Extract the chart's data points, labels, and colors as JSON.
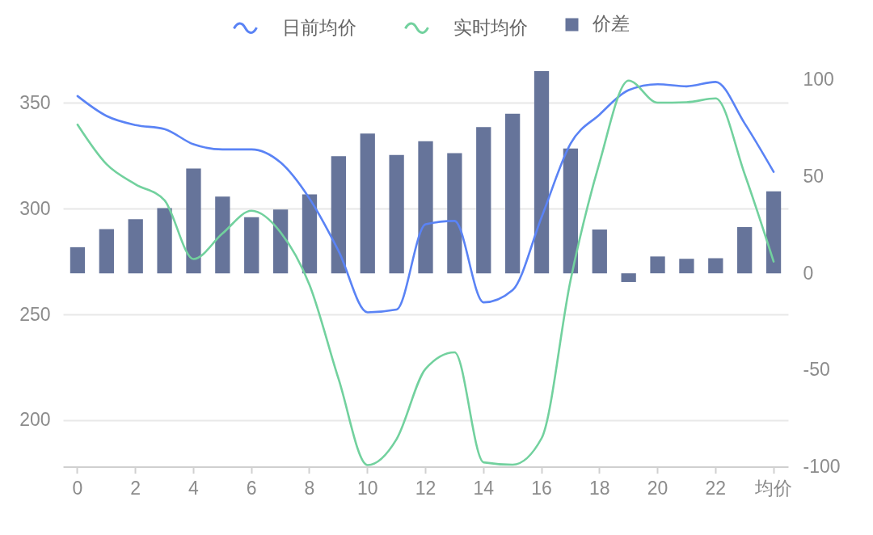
{
  "chart_data": {
    "type": "line",
    "categories": [
      "0",
      null,
      "2",
      null,
      "4",
      null,
      "6",
      null,
      "8",
      null,
      "10",
      null,
      "12",
      null,
      "14",
      null,
      "16",
      null,
      "18",
      null,
      "20",
      null,
      "22",
      null,
      "均价"
    ],
    "series": [
      {
        "name": "日前均价",
        "color": "#5a83f5",
        "values": [
          353.2,
          343.8,
          339.5,
          337.6,
          330.4,
          328.0,
          328.0,
          321.8,
          304.7,
          280.0,
          251.0,
          252.3,
          292.6,
          294.2,
          255.7,
          261.5,
          296.0,
          330.8,
          344.5,
          356.0,
          358.8,
          357.8,
          359.9,
          340.3,
          317.4
        ]
      },
      {
        "name": "实时均价",
        "color": "#72d19e",
        "values": [
          339.7,
          321.0,
          311.5,
          303.9,
          276.2,
          288.3,
          299.0,
          288.8,
          263.9,
          219.5,
          178.8,
          191.1,
          224.3,
          232.1,
          180.1,
          179.0,
          191.5,
          266.3,
          321.9,
          360.5,
          350.1,
          350.3,
          352.1,
          316.4,
          275.0
        ]
      },
      {
        "name": "价差",
        "color": "#66749a",
        "type": "bar",
        "axis": "y2",
        "values": [
          13.5,
          22.8,
          28.0,
          33.7,
          54.2,
          39.7,
          29.0,
          33.0,
          40.8,
          60.5,
          72.2,
          61.2,
          68.3,
          62.1,
          75.6,
          82.5,
          104.5,
          64.5,
          22.6,
          -4.5,
          8.7,
          7.5,
          7.8,
          23.9,
          42.4
        ]
      }
    ],
    "ylim": [
      178,
      365
    ],
    "yticks": [
      200,
      250,
      300,
      350
    ],
    "y2lim": [
      -100,
      104.5
    ],
    "y2ticks": [
      -100,
      -50,
      0,
      50,
      100
    ],
    "grid": "y",
    "legend": "top"
  }
}
